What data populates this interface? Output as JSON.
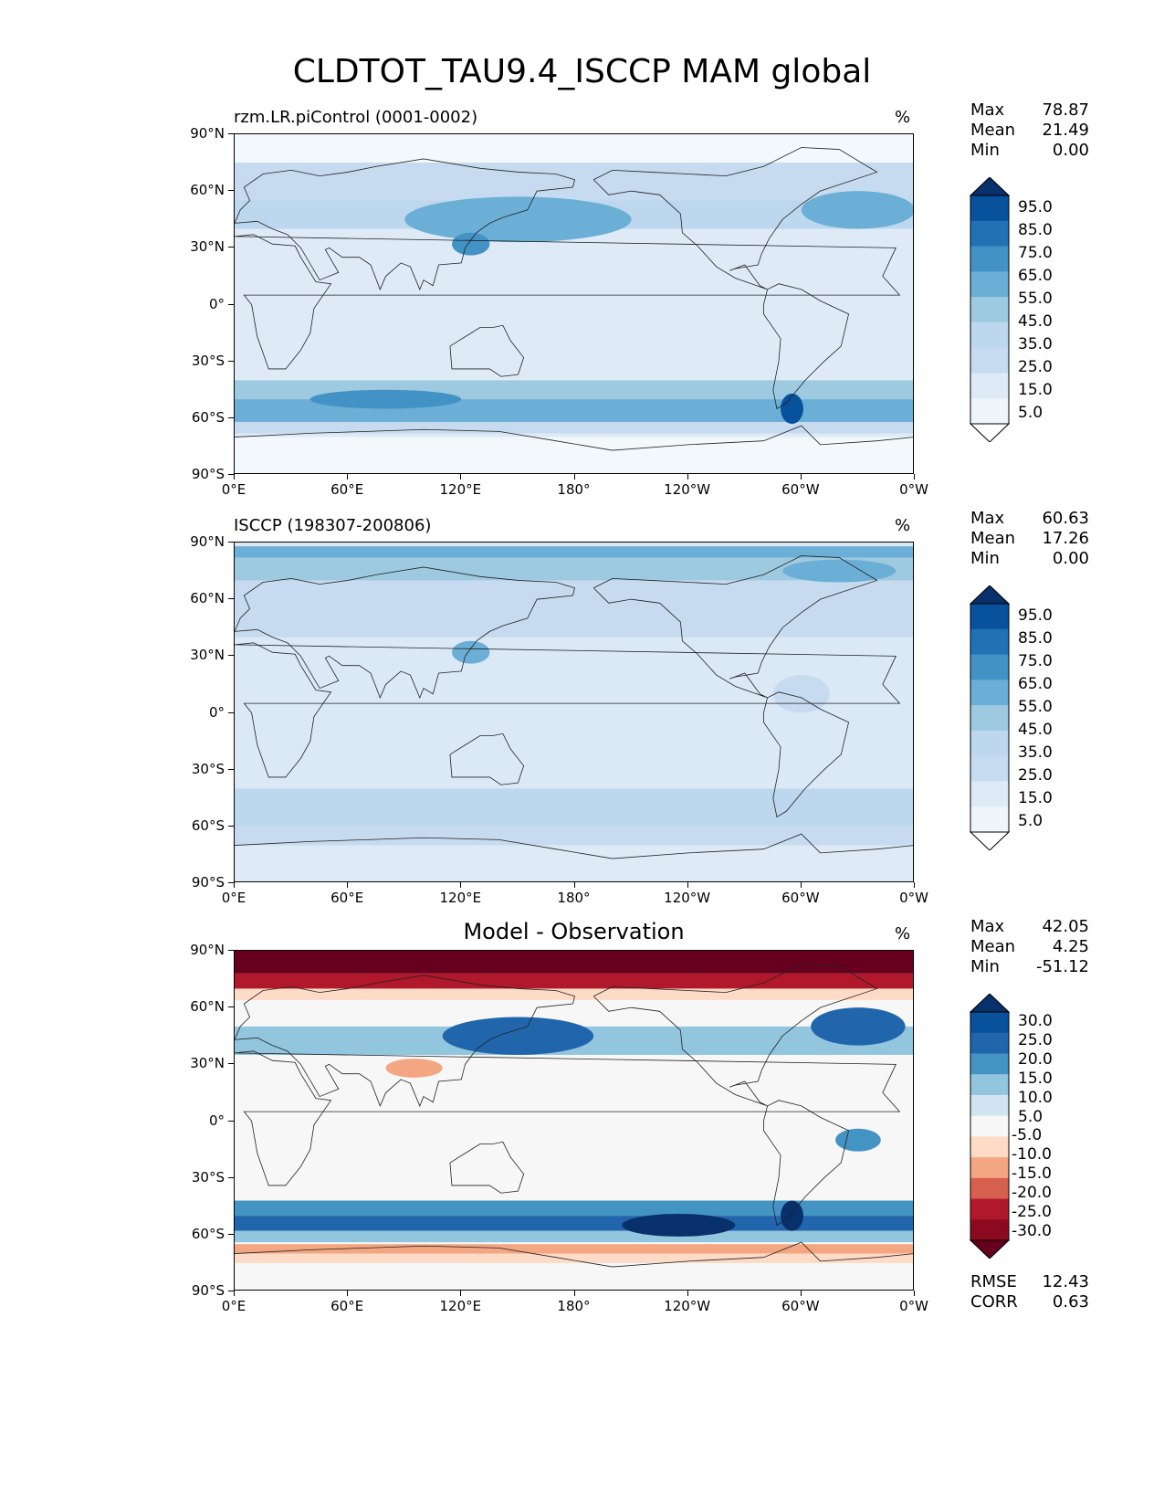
{
  "title": "CLDTOT_TAU9.4_ISCCP MAM global",
  "x_ticks": [
    "0°E",
    "60°E",
    "120°E",
    "180°",
    "120°W",
    "60°W",
    "0°W"
  ],
  "y_ticks": [
    "90°N",
    "60°N",
    "30°N",
    "0°",
    "30°S",
    "60°S",
    "90°S"
  ],
  "panels": [
    {
      "title": "rzm.LR.piControl (0001-0002)",
      "title_style": "left",
      "units": "%",
      "stats": [
        [
          "Max",
          "78.87"
        ],
        [
          "Mean",
          "21.49"
        ],
        [
          "Min",
          "0.00"
        ]
      ],
      "colorbar": {
        "labels": [
          "95.0",
          "85.0",
          "75.0",
          "65.0",
          "55.0",
          "45.0",
          "35.0",
          "25.0",
          "15.0",
          "5.0"
        ],
        "colors": [
          "#08306b",
          "#08519c",
          "#2171b5",
          "#4292c6",
          "#6baed6",
          "#9ecae1",
          "#bdd7ee",
          "#c6dbef",
          "#deebf7",
          "#eef5fb",
          "#ffffff"
        ]
      }
    },
    {
      "title": "ISCCP (198307-200806)",
      "title_style": "left",
      "units": "%",
      "stats": [
        [
          "Max",
          "60.63"
        ],
        [
          "Mean",
          "17.26"
        ],
        [
          "Min",
          "0.00"
        ]
      ],
      "colorbar": {
        "labels": [
          "95.0",
          "85.0",
          "75.0",
          "65.0",
          "55.0",
          "45.0",
          "35.0",
          "25.0",
          "15.0",
          "5.0"
        ],
        "colors": [
          "#08306b",
          "#08519c",
          "#2171b5",
          "#4292c6",
          "#6baed6",
          "#9ecae1",
          "#bdd7ee",
          "#c6dbef",
          "#deebf7",
          "#eef5fb",
          "#ffffff"
        ]
      }
    },
    {
      "title": "Model - Observation",
      "title_style": "center",
      "units": "%",
      "stats": [
        [
          "Max",
          "42.05"
        ],
        [
          "Mean",
          "4.25"
        ],
        [
          "Min",
          "-51.12"
        ]
      ],
      "extra_stats": [
        [
          "RMSE",
          "12.43"
        ],
        [
          "CORR",
          "0.63"
        ]
      ],
      "colorbar": {
        "labels": [
          "30.0",
          "25.0",
          "20.0",
          "15.0",
          "10.0",
          "5.0",
          "-5.0",
          "-10.0",
          "-15.0",
          "-20.0",
          "-25.0",
          "-30.0"
        ],
        "colors": [
          "#08306b",
          "#08519c",
          "#2166ac",
          "#4393c3",
          "#92c5de",
          "#d1e5f0",
          "#f7f7f7",
          "#fddbc7",
          "#f4a582",
          "#d6604d",
          "#b2182b",
          "#8b0a1f",
          "#67001f"
        ]
      }
    }
  ]
}
